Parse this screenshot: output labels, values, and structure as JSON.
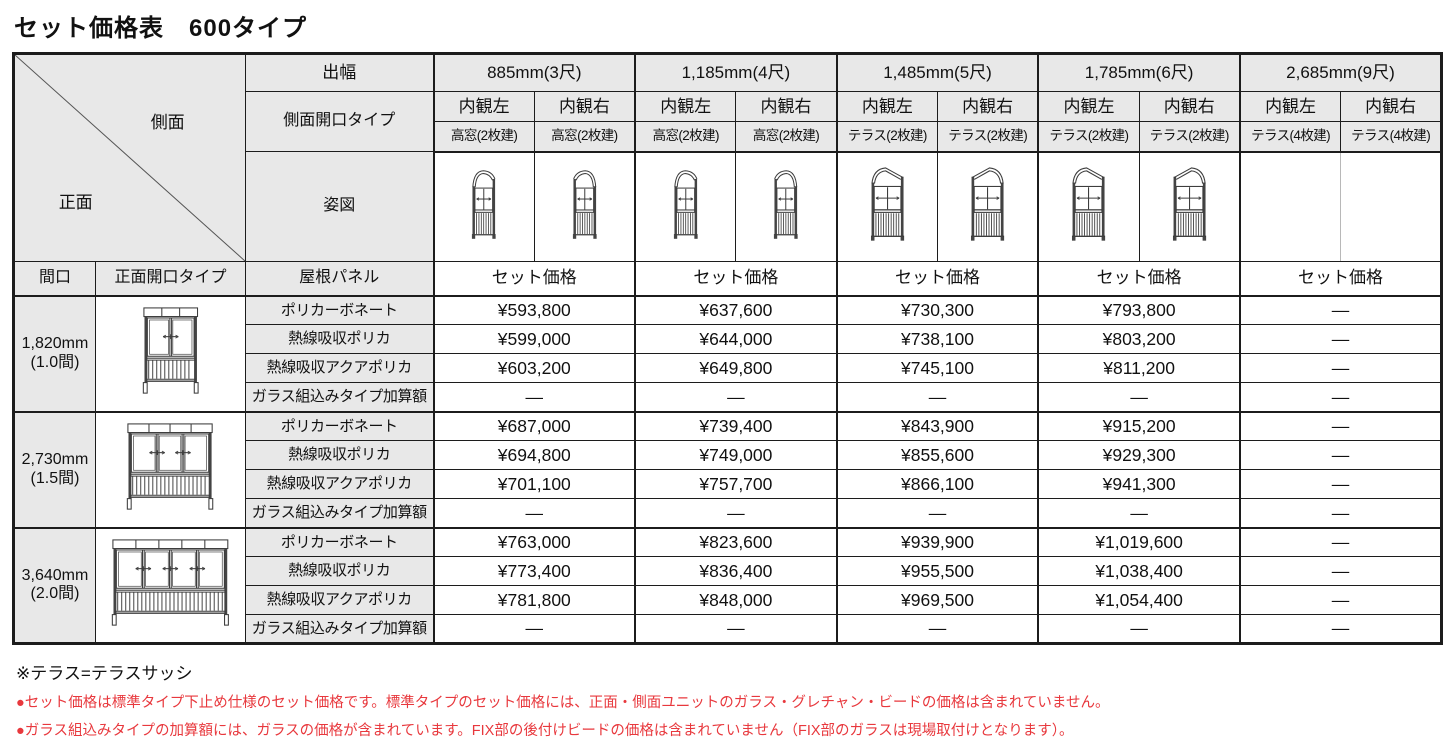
{
  "title": "セット価格表　600タイプ",
  "table": {
    "corner": {
      "side_label": "側面",
      "front_label": "正面"
    },
    "header": {
      "depth_label": "出幅",
      "side_opening_label": "側面開口タイプ",
      "figure_label": "姿図",
      "maguchi_label": "間口",
      "front_opening_label": "正面開口タイプ",
      "roof_panel_label": "屋根パネル",
      "set_price_label": "セット価格",
      "groups": [
        {
          "depth": "885mm(3尺)",
          "left": "内観左",
          "right": "内観右",
          "left_type": "高窓(2枚建)",
          "right_type": "高窓(2枚建)"
        },
        {
          "depth": "1,185mm(4尺)",
          "left": "内観左",
          "right": "内観右",
          "left_type": "高窓(2枚建)",
          "right_type": "高窓(2枚建)"
        },
        {
          "depth": "1,485mm(5尺)",
          "left": "内観左",
          "right": "内観右",
          "left_type": "テラス(2枚建)",
          "right_type": "テラス(2枚建)"
        },
        {
          "depth": "1,785mm(6尺)",
          "left": "内観左",
          "right": "内観右",
          "left_type": "テラス(2枚建)",
          "right_type": "テラス(2枚建)"
        },
        {
          "depth": "2,685mm(9尺)",
          "left": "内観左",
          "right": "内観右",
          "left_type": "テラス(4枚建)",
          "right_type": "テラス(4枚建)"
        }
      ]
    },
    "panel_types": [
      "ポリカーボネート",
      "熱線吸収ポリカ",
      "熱線吸収アクアポリカ",
      "ガラス組込みタイプ加算額"
    ],
    "row_groups": [
      {
        "width": "1,820mm",
        "ken": "(1.0間)",
        "prices": [
          [
            "¥593,800",
            "¥637,600",
            "¥730,300",
            "¥793,800",
            "—"
          ],
          [
            "¥599,000",
            "¥644,000",
            "¥738,100",
            "¥803,200",
            "—"
          ],
          [
            "¥603,200",
            "¥649,800",
            "¥745,100",
            "¥811,200",
            "—"
          ],
          [
            "—",
            "—",
            "—",
            "—",
            "—"
          ]
        ]
      },
      {
        "width": "2,730mm",
        "ken": "(1.5間)",
        "prices": [
          [
            "¥687,000",
            "¥739,400",
            "¥843,900",
            "¥915,200",
            "—"
          ],
          [
            "¥694,800",
            "¥749,000",
            "¥855,600",
            "¥929,300",
            "—"
          ],
          [
            "¥701,100",
            "¥757,700",
            "¥866,100",
            "¥941,300",
            "—"
          ],
          [
            "—",
            "—",
            "—",
            "—",
            "—"
          ]
        ]
      },
      {
        "width": "3,640mm",
        "ken": "(2.0間)",
        "prices": [
          [
            "¥763,000",
            "¥823,600",
            "¥939,900",
            "¥1,019,600",
            "—"
          ],
          [
            "¥773,400",
            "¥836,400",
            "¥955,500",
            "¥1,038,400",
            "—"
          ],
          [
            "¥781,800",
            "¥848,000",
            "¥969,500",
            "¥1,054,400",
            "—"
          ],
          [
            "—",
            "—",
            "—",
            "—",
            "—"
          ]
        ]
      }
    ]
  },
  "notes": {
    "terrace": "※テラス=テラスサッシ",
    "red_notes": [
      "●セット価格は標準タイプ下止め仕様のセット価格です。標準タイプのセット価格には、正面・側面ユニットのガラス・グレチャン・ビードの価格は含まれていません。",
      "●ガラス組込みタイプの加算額には、ガラスの価格が含まれています。FIX部の後付けビードの価格は含まれていません（FIX部のガラスは現場取付けとなります）。"
    ]
  },
  "colors": {
    "red": "#e8383d",
    "header_bg": "#e8e8e8",
    "border": "#1c1c1c"
  }
}
